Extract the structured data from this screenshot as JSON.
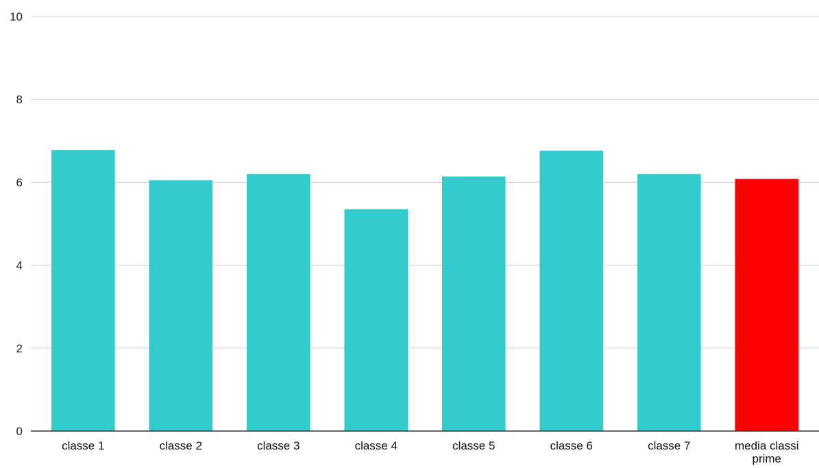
{
  "chart_data": {
    "type": "bar",
    "title": "",
    "xlabel": "",
    "ylabel": "",
    "ylim": [
      0,
      10
    ],
    "yticks": [
      "0",
      "2",
      "4",
      "6",
      "8",
      "10"
    ],
    "grid": true,
    "legend": "none",
    "categories": [
      [
        "classe 1"
      ],
      [
        "classe 2"
      ],
      [
        "classe 3"
      ],
      [
        "classe 4"
      ],
      [
        "classe 5"
      ],
      [
        "classe 6"
      ],
      [
        "classe 7"
      ],
      [
        "media classi",
        "prime"
      ]
    ],
    "values": [
      6.78,
      6.05,
      6.2,
      5.35,
      6.14,
      6.76,
      6.2,
      6.08
    ],
    "colors": [
      "#33cccc",
      "#33cccc",
      "#33cccc",
      "#33cccc",
      "#33cccc",
      "#33cccc",
      "#33cccc",
      "#ff0000"
    ],
    "grid_color": "#cccccc",
    "axis_color": "#333333"
  }
}
